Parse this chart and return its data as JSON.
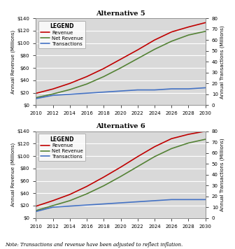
{
  "title1": "Alternative 5",
  "title2": "Alternative 6",
  "note": "Note: Transactions and revenue have been adjusted to reflect inflation.",
  "years": [
    2010,
    2012,
    2014,
    2016,
    2018,
    2020,
    2022,
    2024,
    2026,
    2028,
    2030
  ],
  "alt5": {
    "revenue": [
      19,
      26,
      35,
      46,
      59,
      74,
      89,
      105,
      118,
      126,
      133
    ],
    "net_revenue": [
      12,
      18,
      25,
      34,
      46,
      60,
      75,
      90,
      103,
      113,
      119
    ],
    "transactions": [
      6,
      9,
      10,
      11,
      12,
      13,
      14,
      14,
      15,
      15,
      16
    ]
  },
  "alt6": {
    "revenue": [
      19,
      28,
      38,
      51,
      66,
      82,
      99,
      115,
      128,
      135,
      140
    ],
    "net_revenue": [
      12,
      20,
      28,
      39,
      52,
      67,
      83,
      99,
      112,
      121,
      127
    ],
    "transactions": [
      6,
      10,
      11,
      12,
      13,
      14,
      15,
      16,
      17,
      17,
      17
    ]
  },
  "ylim_revenue": [
    0,
    140
  ],
  "ylim_transactions": [
    0,
    80
  ],
  "revenue_color": "#c00000",
  "net_revenue_color": "#548235",
  "transactions_color": "#4472c4",
  "plot_bg_color": "#d9d9d9",
  "fig_bg_color": "#ffffff",
  "grid_color": "#ffffff",
  "yticks_revenue": [
    0,
    20,
    40,
    60,
    80,
    100,
    120,
    140
  ],
  "yticks_revenue_labels": [
    "$0",
    "$20",
    "$40",
    "$60",
    "$80",
    "$100",
    "$120",
    "$140"
  ],
  "yticks_transactions": [
    0,
    10,
    20,
    30,
    40,
    50,
    60,
    70,
    80
  ],
  "ylabel_left": "Annual Revenue (Millions)",
  "ylabel_right": "Annual Transactions (Millions)"
}
